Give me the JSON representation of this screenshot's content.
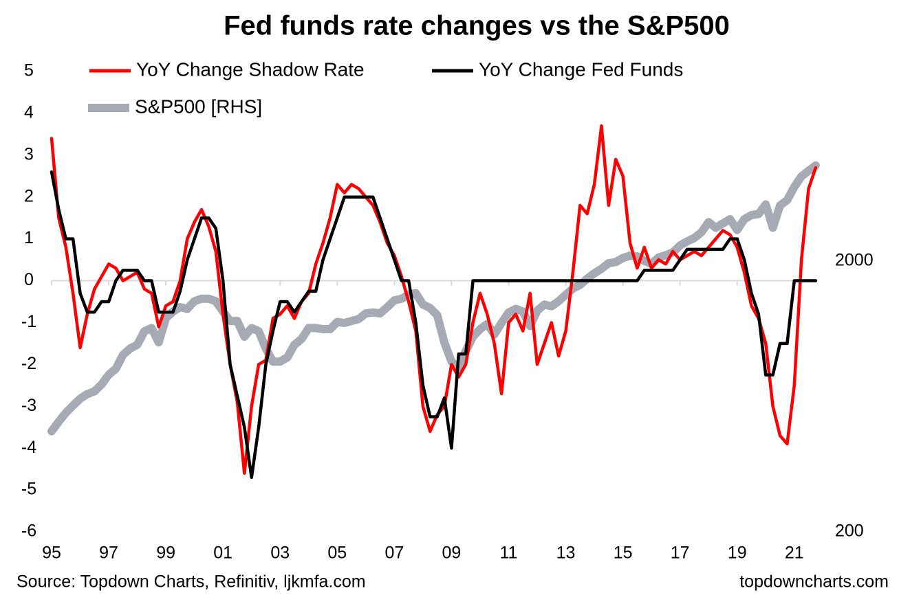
{
  "chart_data": {
    "type": "line",
    "title": "Fed funds rate changes vs the S&P500",
    "source": "Source: Topdown Charts, Refinitiv, ljkmfa.com",
    "credit": "topdowncharts.com",
    "x": [
      1995,
      1995.25,
      1995.5,
      1995.75,
      1996,
      1996.25,
      1996.5,
      1996.75,
      1997,
      1997.25,
      1997.5,
      1997.75,
      1998,
      1998.25,
      1998.5,
      1998.75,
      1999,
      1999.25,
      1999.5,
      1999.75,
      2000,
      2000.25,
      2000.5,
      2000.75,
      2001,
      2001.25,
      2001.5,
      2001.75,
      2002,
      2002.25,
      2002.5,
      2002.75,
      2003,
      2003.25,
      2003.5,
      2003.75,
      2004,
      2004.25,
      2004.5,
      2004.75,
      2005,
      2005.25,
      2005.5,
      2005.75,
      2006,
      2006.25,
      2006.5,
      2006.75,
      2007,
      2007.25,
      2007.5,
      2007.75,
      2008,
      2008.25,
      2008.5,
      2008.75,
      2009,
      2009.25,
      2009.5,
      2009.75,
      2010,
      2010.25,
      2010.5,
      2010.75,
      2011,
      2011.25,
      2011.5,
      2011.75,
      2012,
      2012.25,
      2012.5,
      2012.75,
      2013,
      2013.25,
      2013.5,
      2013.75,
      2014,
      2014.25,
      2014.5,
      2014.75,
      2015,
      2015.25,
      2015.5,
      2015.75,
      2016,
      2016.25,
      2016.5,
      2016.75,
      2017,
      2017.25,
      2017.5,
      2017.75,
      2018,
      2018.25,
      2018.5,
      2018.75,
      2019,
      2019.25,
      2019.5,
      2019.75,
      2020,
      2020.25,
      2020.5,
      2020.75,
      2021,
      2021.25,
      2021.5,
      2021.75
    ],
    "series": [
      {
        "name": "S&P500 [RHS]",
        "color": "#a5aab4",
        "axis": "y2",
        "width": 12,
        "values": [
          470,
          510,
          550,
          585,
          620,
          645,
          660,
          700,
          760,
          800,
          900,
          950,
          980,
          1100,
          1130,
          1000,
          1230,
          1300,
          1350,
          1330,
          1420,
          1450,
          1450,
          1420,
          1300,
          1200,
          1200,
          1050,
          1130,
          1100,
          950,
          850,
          850,
          880,
          980,
          1030,
          1130,
          1130,
          1120,
          1120,
          1190,
          1180,
          1200,
          1220,
          1280,
          1290,
          1280,
          1350,
          1430,
          1450,
          1500,
          1520,
          1380,
          1340,
          1260,
          1000,
          850,
          800,
          930,
          1050,
          1120,
          1170,
          1070,
          1180,
          1290,
          1330,
          1300,
          1150,
          1310,
          1380,
          1360,
          1420,
          1500,
          1580,
          1630,
          1720,
          1800,
          1870,
          1960,
          1980,
          2050,
          2090,
          2080,
          2000,
          1950,
          2060,
          2100,
          2150,
          2280,
          2360,
          2430,
          2550,
          2780,
          2650,
          2750,
          2850,
          2600,
          2850,
          2950,
          2980,
          3230,
          2650,
          3200,
          3350,
          3750,
          4100,
          4300,
          4500
        ]
      },
      {
        "name": "YoY Change Shadow Rate",
        "color": "#ff0000",
        "width": 4.5,
        "values": [
          3.4,
          1.5,
          0.8,
          -0.3,
          -1.6,
          -0.8,
          -0.2,
          0.1,
          0.4,
          0.3,
          0.0,
          0.1,
          0.2,
          -0.2,
          -0.3,
          -1.1,
          -0.6,
          -0.5,
          0.0,
          1.0,
          1.4,
          1.7,
          1.3,
          0.7,
          -0.8,
          -2.0,
          -2.9,
          -4.6,
          -3.0,
          -2.0,
          -1.9,
          -0.9,
          -0.8,
          -0.6,
          -0.9,
          -0.5,
          -0.3,
          0.4,
          0.9,
          1.5,
          2.3,
          2.1,
          2.3,
          2.2,
          2.0,
          1.8,
          1.4,
          0.9,
          0.6,
          0.1,
          -0.5,
          -1.2,
          -3.0,
          -3.6,
          -3.2,
          -3.0,
          -2.0,
          -2.3,
          -2.0,
          -1.0,
          -0.3,
          -0.8,
          -1.5,
          -2.7,
          -1.0,
          -0.8,
          -1.2,
          -0.3,
          -2.0,
          -1.5,
          -1.0,
          -1.8,
          -1.2,
          0.2,
          1.8,
          1.6,
          2.3,
          3.7,
          1.8,
          2.9,
          2.5,
          0.9,
          0.3,
          0.8,
          0.3,
          0.5,
          0.4,
          0.7,
          0.5,
          0.6,
          0.7,
          0.6,
          0.8,
          1.0,
          1.2,
          1.1,
          0.8,
          0.2,
          -0.6,
          -0.9,
          -1.5,
          -3.0,
          -3.7,
          -3.9,
          -2.5,
          0.5,
          2.2,
          2.7
        ]
      },
      {
        "name": "YoY Change Fed Funds",
        "color": "#000000",
        "width": 4.5,
        "values": [
          2.6,
          1.7,
          1.0,
          1.0,
          -0.3,
          -0.75,
          -0.75,
          -0.5,
          -0.5,
          0.0,
          0.25,
          0.25,
          0.25,
          0.0,
          0.0,
          -0.75,
          -0.75,
          -0.75,
          -0.25,
          0.5,
          1.0,
          1.5,
          1.5,
          1.25,
          0.0,
          -2.0,
          -2.75,
          -3.5,
          -4.7,
          -3.5,
          -2.0,
          -1.2,
          -0.5,
          -0.5,
          -0.75,
          -0.5,
          -0.25,
          -0.25,
          0.5,
          1.0,
          1.5,
          2.0,
          2.0,
          2.0,
          2.0,
          2.0,
          1.5,
          1.0,
          0.5,
          0.0,
          0.0,
          -1.0,
          -2.5,
          -3.25,
          -3.25,
          -2.8,
          -4.0,
          -1.75,
          -1.75,
          0.0,
          0.0,
          0.0,
          0.0,
          0.0,
          0.0,
          0.0,
          0.0,
          0.0,
          0.0,
          0.0,
          0.0,
          0.0,
          0.0,
          0.0,
          0.0,
          0.0,
          0.0,
          0.0,
          0.0,
          0.0,
          0.0,
          0.0,
          0.0,
          0.25,
          0.25,
          0.25,
          0.25,
          0.25,
          0.5,
          0.75,
          0.75,
          0.75,
          0.75,
          0.75,
          0.75,
          1.0,
          1.0,
          0.5,
          -0.3,
          -0.8,
          -2.25,
          -2.25,
          -1.5,
          -1.5,
          0.0,
          0.0,
          0.0,
          0.0
        ]
      }
    ],
    "legend_order": [
      1,
      2,
      0
    ],
    "xlim": [
      1995,
      2021.8
    ],
    "xticks": [
      {
        "value": 1995,
        "label": "95"
      },
      {
        "value": 1997,
        "label": "97"
      },
      {
        "value": 1999,
        "label": "99"
      },
      {
        "value": 2001,
        "label": "01"
      },
      {
        "value": 2003,
        "label": "03"
      },
      {
        "value": 2005,
        "label": "05"
      },
      {
        "value": 2007,
        "label": "07"
      },
      {
        "value": 2009,
        "label": "09"
      },
      {
        "value": 2011,
        "label": "11"
      },
      {
        "value": 2013,
        "label": "13"
      },
      {
        "value": 2015,
        "label": "15"
      },
      {
        "value": 2017,
        "label": "17"
      },
      {
        "value": 2019,
        "label": "19"
      },
      {
        "value": 2021,
        "label": "21"
      }
    ],
    "ylim": [
      -6,
      5
    ],
    "yticks": [
      -6,
      -5,
      -4,
      -3,
      -2,
      -1,
      0,
      1,
      2,
      3,
      4,
      5
    ],
    "y2lim": [
      200,
      10000
    ],
    "y2ticks": [
      200,
      2000
    ],
    "y2log": true,
    "grid": false
  }
}
